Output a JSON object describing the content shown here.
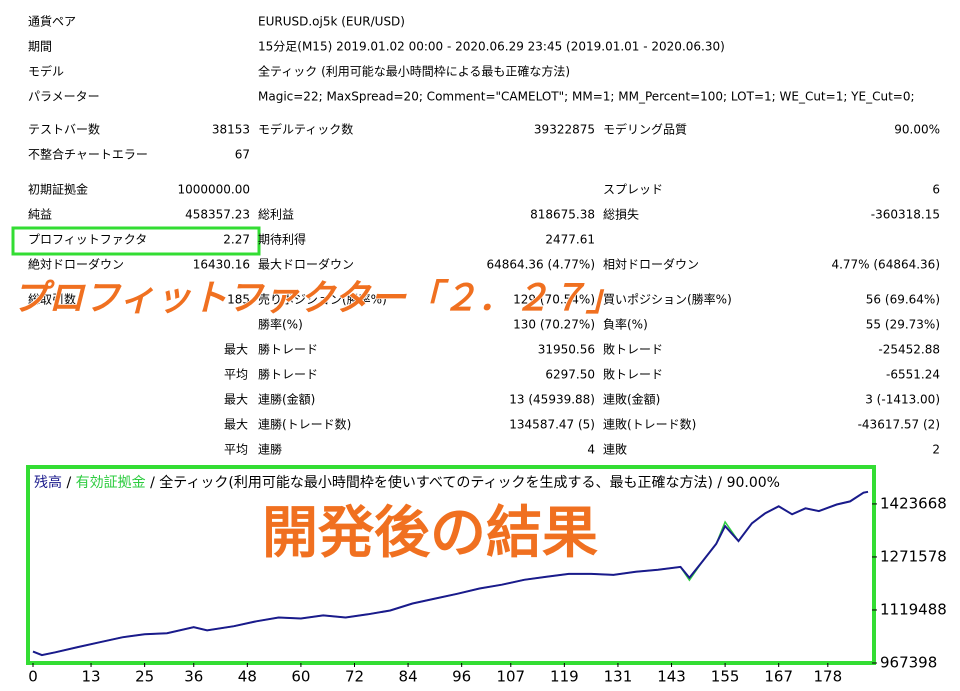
{
  "header": [
    {
      "label": "通貨ペア",
      "value": "EURUSD.oj5k (EUR/USD)"
    },
    {
      "label": "期間",
      "value": "15分足(M15) 2019.01.02 00:00 - 2020.06.29 23:45 (2019.01.01 - 2020.06.30)"
    },
    {
      "label": "モデル",
      "value": "全ティック (利用可能な最小時間枠による最も正確な方法)"
    },
    {
      "label": "パラメーター",
      "value": "Magic=22; MaxSpread=20; Comment=\"CAMELOT\"; MM=1; MM_Percent=100; LOT=1; WE_Cut=1; YE_Cut=0;"
    }
  ],
  "stats": [
    [
      {
        "label": "テストバー数",
        "value": "38153"
      },
      {
        "label": "モデルティック数",
        "value": "39322875"
      },
      {
        "label": "モデリング品質",
        "value": "90.00%"
      }
    ],
    [
      {
        "label": "不整合チャートエラー",
        "value": "67"
      },
      null,
      null
    ],
    [
      {
        "label": "初期証拠金",
        "value": "1000000.00"
      },
      null,
      {
        "label": "スプレッド",
        "value": "6"
      }
    ],
    [
      {
        "label": "純益",
        "value": "458357.23"
      },
      {
        "label": "総利益",
        "value": "818675.38"
      },
      {
        "label": "総損失",
        "value": "-360318.15"
      }
    ],
    [
      {
        "label": "プロフィットファクタ",
        "value": "2.27"
      },
      {
        "label": "期待利得",
        "value": "2477.61"
      },
      null
    ],
    [
      {
        "label": "絶対ドローダウン",
        "value": "16430.16"
      },
      {
        "label": "最大ドローダウン",
        "value": "64864.36 (4.77%)"
      },
      {
        "label": "相対ドローダウン",
        "value": "4.77% (64864.36)"
      }
    ],
    [
      {
        "label": "総取引数",
        "value": "185"
      },
      {
        "label": "売りポジション(勝率%)",
        "value": "129 (70.54%)"
      },
      {
        "label": "買いポジション(勝率%)",
        "value": "56 (69.64%)"
      }
    ],
    [
      null,
      {
        "label": "勝率(%)",
        "value": "130 (70.27%)"
      },
      {
        "label": "負率(%)",
        "value": "55 (29.73%)"
      }
    ],
    [
      null,
      {
        "prefix": "最大",
        "label": "勝トレード",
        "value": "31950.56"
      },
      {
        "label": "敗トレード",
        "value": "-25452.88"
      }
    ],
    [
      null,
      {
        "prefix": "平均",
        "label": "勝トレード",
        "value": "6297.50"
      },
      {
        "label": "敗トレード",
        "value": "-6551.24"
      }
    ],
    [
      null,
      {
        "prefix": "最大",
        "label": "連勝(金額)",
        "value": "13 (45939.88)"
      },
      {
        "label": "連敗(金額)",
        "value": "3 (-1413.00)"
      }
    ],
    [
      null,
      {
        "prefix": "最大",
        "label": "連勝(トレード数)",
        "value": "134587.47 (5)"
      },
      {
        "label": "連敗(トレード数)",
        "value": "-43617.57 (2)"
      }
    ],
    [
      null,
      {
        "prefix": "平均",
        "label": "連勝",
        "value": "4"
      },
      {
        "label": "連敗",
        "value": "2"
      }
    ]
  ],
  "annotations": [
    "プロフィットファクター「２．２７」",
    "開発後の結果"
  ],
  "chart_data": {
    "type": "line",
    "separator": "/",
    "subtitle": "全ティック(利用可能な最小時間枠を使いすべてのティックを生成する、最も正確な方法) / 90.00%",
    "x": [
      0,
      2,
      5,
      10,
      15,
      20,
      25,
      30,
      36,
      39,
      45,
      50,
      55,
      60,
      65,
      70,
      75,
      80,
      85,
      90,
      95,
      100,
      105,
      110,
      115,
      120,
      125,
      130,
      135,
      140,
      145,
      147,
      150,
      153,
      155,
      158,
      161,
      164,
      167,
      170,
      173,
      176,
      180,
      183,
      186,
      187
    ],
    "series": [
      {
        "name": "残高",
        "color": "#1a1a8c",
        "values": [
          1000000,
          990000,
          998000,
          1013000,
          1027000,
          1041000,
          1050000,
          1053000,
          1070000,
          1061000,
          1073000,
          1087000,
          1098000,
          1095000,
          1104000,
          1098000,
          1107000,
          1118000,
          1138000,
          1152000,
          1166000,
          1181000,
          1192000,
          1206000,
          1215000,
          1223000,
          1223000,
          1220000,
          1229000,
          1235000,
          1243000,
          1212000,
          1260000,
          1309000,
          1360000,
          1317000,
          1368000,
          1397000,
          1417000,
          1394000,
          1411000,
          1403000,
          1422000,
          1431000,
          1456000,
          1458357
        ]
      },
      {
        "name": "有効証拠金",
        "color": "#2ecc40",
        "values": [
          1000000,
          990000,
          998000,
          1013000,
          1027000,
          1041000,
          1050000,
          1053000,
          1070000,
          1061000,
          1073000,
          1087000,
          1098000,
          1095000,
          1104000,
          1098000,
          1107000,
          1118000,
          1138000,
          1152000,
          1166000,
          1181000,
          1192000,
          1206000,
          1215000,
          1223000,
          1223000,
          1220000,
          1229000,
          1235000,
          1243000,
          1205000,
          1260000,
          1309000,
          1372000,
          1317000,
          1368000,
          1397000,
          1417000,
          1394000,
          1411000,
          1403000,
          1422000,
          1431000,
          1456000,
          1458357
        ]
      }
    ],
    "xlim": [
      0,
      187
    ],
    "ylim": [
      967398,
      1521000
    ],
    "xticks": [
      0,
      13,
      25,
      36,
      48,
      60,
      72,
      84,
      96,
      107,
      119,
      131,
      143,
      155,
      167,
      178
    ],
    "yticks": [
      967398,
      1119488,
      1271578,
      1423668
    ],
    "grid": false
  }
}
